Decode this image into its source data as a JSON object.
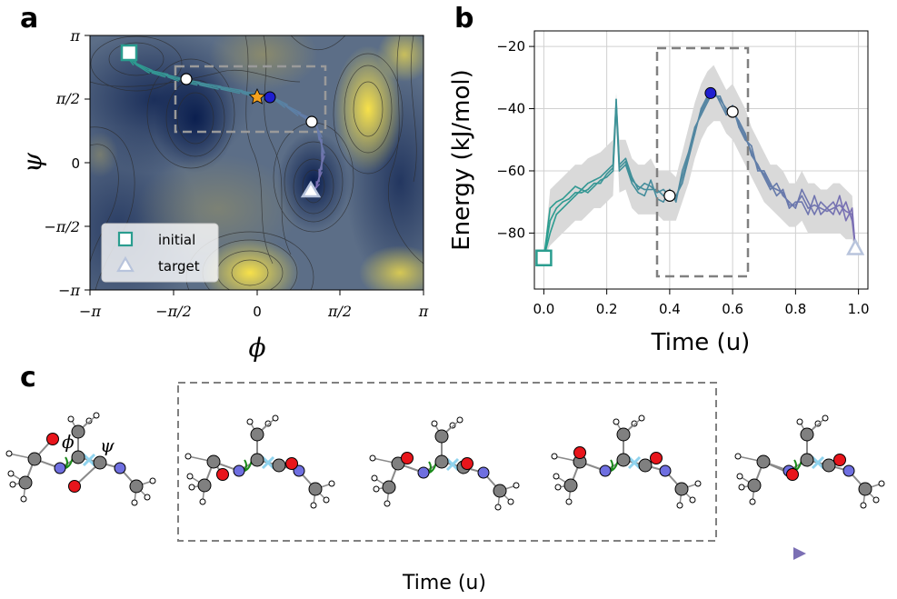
{
  "panel_labels": {
    "a": "a",
    "b": "b",
    "c": "c"
  },
  "colors": {
    "initial": "#2a9d8f",
    "target": "#b8c4dc",
    "path_start": "#2a9d8f",
    "path_end": "#7b6fb4",
    "blue_dot": "#1f1fd0",
    "star": "#f6a21d",
    "oxygen": "#e8151b",
    "nitrogen": "#6f6fe0",
    "carbon": "#808080",
    "phi_marker": "#1a8a1a",
    "psi_marker": "#8fd3ee",
    "band": "#d9d9d9",
    "box": "#808080"
  },
  "chart_data": [
    {
      "panel": "a",
      "type": "heatmap",
      "xlabel": "ϕ",
      "ylabel": "ψ",
      "xlim": [
        -3.1416,
        3.1416
      ],
      "ylim": [
        -3.1416,
        3.1416
      ],
      "xticks": [
        {
          "value": -3.1416,
          "label": "−π"
        },
        {
          "value": -1.5708,
          "label": "−π/2"
        },
        {
          "value": 0,
          "label": "0"
        },
        {
          "value": 1.5708,
          "label": "π/2"
        },
        {
          "value": 3.1416,
          "label": "π"
        }
      ],
      "yticks": [
        {
          "value": -3.1416,
          "label": "−π"
        },
        {
          "value": -1.5708,
          "label": "−π/2"
        },
        {
          "value": 0,
          "label": "0"
        },
        {
          "value": 1.5708,
          "label": "π/2"
        },
        {
          "value": 3.1416,
          "label": "π"
        }
      ],
      "colormap": "cividis (low = dark blue, high = yellow)",
      "legend": {
        "position": "lower-left",
        "entries": [
          {
            "label": "initial",
            "marker": "square",
            "color": "#2a9d8f"
          },
          {
            "label": "target",
            "marker": "triangle",
            "color": "#b8c4dc"
          }
        ]
      },
      "markers": {
        "initial": {
          "phi": -2.5,
          "psi": 2.7
        },
        "target": {
          "phi": 1.1,
          "psi": -0.65
        },
        "white_dots": [
          {
            "phi": -1.45,
            "psi": 2.05
          },
          {
            "phi": 1.1,
            "psi": 1.0
          }
        ],
        "blue_dot": {
          "phi": 0.3,
          "psi": 1.6
        },
        "star": {
          "phi": -0.05,
          "psi": 1.6
        }
      },
      "path": [
        [
          -2.5,
          2.7
        ],
        [
          -2.3,
          2.45
        ],
        [
          -2.0,
          2.25
        ],
        [
          -1.7,
          2.15
        ],
        [
          -1.45,
          2.05
        ],
        [
          -1.1,
          1.95
        ],
        [
          -0.7,
          1.85
        ],
        [
          -0.3,
          1.75
        ],
        [
          0.0,
          1.65
        ],
        [
          0.3,
          1.6
        ],
        [
          0.55,
          1.4
        ],
        [
          0.8,
          1.2
        ],
        [
          1.1,
          1.0
        ],
        [
          1.2,
          0.6
        ],
        [
          1.25,
          0.2
        ],
        [
          1.2,
          -0.2
        ],
        [
          1.15,
          -0.5
        ],
        [
          1.1,
          -0.65
        ]
      ],
      "dashed_box": {
        "phi": [
          -2.0,
          1.6
        ],
        "psi": [
          0.8,
          2.4
        ]
      }
    },
    {
      "panel": "b",
      "type": "line",
      "xlabel": "Time (u)",
      "ylabel": "Energy (kJ/mol)",
      "xlim": [
        -0.03,
        1.03
      ],
      "ylim": [
        -98,
        -15
      ],
      "xticks": [
        0.0,
        0.2,
        0.4,
        0.6,
        0.8,
        1.0
      ],
      "xtick_labels": [
        "0.0",
        "0.2",
        "0.4",
        "0.6",
        "0.8",
        "1.0"
      ],
      "yticks": [
        -80,
        -60,
        -40,
        -20
      ],
      "ytick_labels": [
        "−80",
        "−60",
        "−40",
        "−20"
      ],
      "grid": true,
      "dashed_box": {
        "x": [
          0.35,
          0.65
        ],
        "y": [
          -94,
          -20
        ]
      },
      "markers": {
        "initial": {
          "x": 0.0,
          "y": -88
        },
        "target": {
          "x": 0.99,
          "y": -85
        },
        "white_dots": [
          {
            "x": 0.4,
            "y": -68
          },
          {
            "x": 0.6,
            "y": -41
          }
        ],
        "blue_dot": {
          "x": 0.53,
          "y": -35
        }
      },
      "x": [
        0.0,
        0.02,
        0.04,
        0.06,
        0.08,
        0.1,
        0.12,
        0.14,
        0.16,
        0.18,
        0.2,
        0.22,
        0.23,
        0.24,
        0.26,
        0.28,
        0.3,
        0.32,
        0.34,
        0.36,
        0.38,
        0.4,
        0.42,
        0.44,
        0.46,
        0.48,
        0.5,
        0.52,
        0.54,
        0.56,
        0.58,
        0.6,
        0.62,
        0.64,
        0.66,
        0.68,
        0.7,
        0.72,
        0.74,
        0.76,
        0.78,
        0.8,
        0.82,
        0.84,
        0.86,
        0.88,
        0.9,
        0.92,
        0.94,
        0.96,
        0.98,
        0.99
      ],
      "series": [
        {
          "values": [
            -88,
            -72,
            -70,
            -69,
            -67,
            -65,
            -66,
            -64,
            -63,
            -62,
            -60,
            -58,
            -37,
            -58,
            -56,
            -62,
            -66,
            -64,
            -65,
            -67,
            -66,
            -68,
            -68,
            -64,
            -56,
            -48,
            -40,
            -36,
            -35,
            -37,
            -40,
            -41,
            -44,
            -48,
            -55,
            -58,
            -62,
            -66,
            -64,
            -68,
            -70,
            -72,
            -66,
            -70,
            -74,
            -70,
            -72,
            -74,
            -68,
            -76,
            -72,
            -85
          ]
        },
        {
          "values": [
            -88,
            -80,
            -74,
            -72,
            -70,
            -68,
            -66,
            -67,
            -65,
            -63,
            -62,
            -60,
            -39,
            -60,
            -58,
            -64,
            -67,
            -68,
            -63,
            -69,
            -70,
            -66,
            -70,
            -60,
            -54,
            -46,
            -42,
            -38,
            -34,
            -38,
            -42,
            -39,
            -46,
            -50,
            -52,
            -60,
            -60,
            -64,
            -68,
            -66,
            -72,
            -70,
            -70,
            -74,
            -68,
            -74,
            -72,
            -70,
            -74,
            -70,
            -76,
            -85
          ]
        },
        {
          "values": [
            -88,
            -76,
            -72,
            -70,
            -69,
            -67,
            -67,
            -66,
            -64,
            -64,
            -61,
            -59,
            -38,
            -59,
            -57,
            -63,
            -65,
            -66,
            -66,
            -66,
            -68,
            -67,
            -69,
            -62,
            -55,
            -47,
            -41,
            -37,
            -36,
            -36,
            -41,
            -40,
            -45,
            -49,
            -54,
            -59,
            -61,
            -65,
            -66,
            -67,
            -71,
            -71,
            -68,
            -72,
            -71,
            -72,
            -73,
            -72,
            -71,
            -73,
            -74,
            -85
          ]
        }
      ],
      "band": {
        "lower": [
          -88,
          -84,
          -82,
          -80,
          -78,
          -76,
          -76,
          -74,
          -72,
          -72,
          -70,
          -68,
          -45,
          -67,
          -66,
          -72,
          -74,
          -74,
          -74,
          -74,
          -76,
          -76,
          -76,
          -70,
          -64,
          -56,
          -50,
          -46,
          -44,
          -44,
          -48,
          -50,
          -54,
          -58,
          -62,
          -66,
          -70,
          -72,
          -74,
          -76,
          -78,
          -78,
          -76,
          -80,
          -80,
          -80,
          -80,
          -80,
          -80,
          -82,
          -82,
          -85
        ],
        "upper": [
          -88,
          -66,
          -64,
          -62,
          -60,
          -58,
          -58,
          -56,
          -55,
          -54,
          -52,
          -50,
          -35,
          -50,
          -50,
          -56,
          -58,
          -58,
          -56,
          -60,
          -60,
          -60,
          -62,
          -54,
          -46,
          -38,
          -32,
          -28,
          -26,
          -30,
          -34,
          -32,
          -36,
          -40,
          -46,
          -50,
          -54,
          -58,
          -58,
          -60,
          -64,
          -64,
          -60,
          -64,
          -64,
          -66,
          -66,
          -64,
          -64,
          -66,
          -68,
          -85
        ]
      }
    }
  ],
  "panel_c": {
    "angle_labels": {
      "phi": "ϕ",
      "psi": "ψ"
    },
    "time_label": "Time (u)"
  }
}
